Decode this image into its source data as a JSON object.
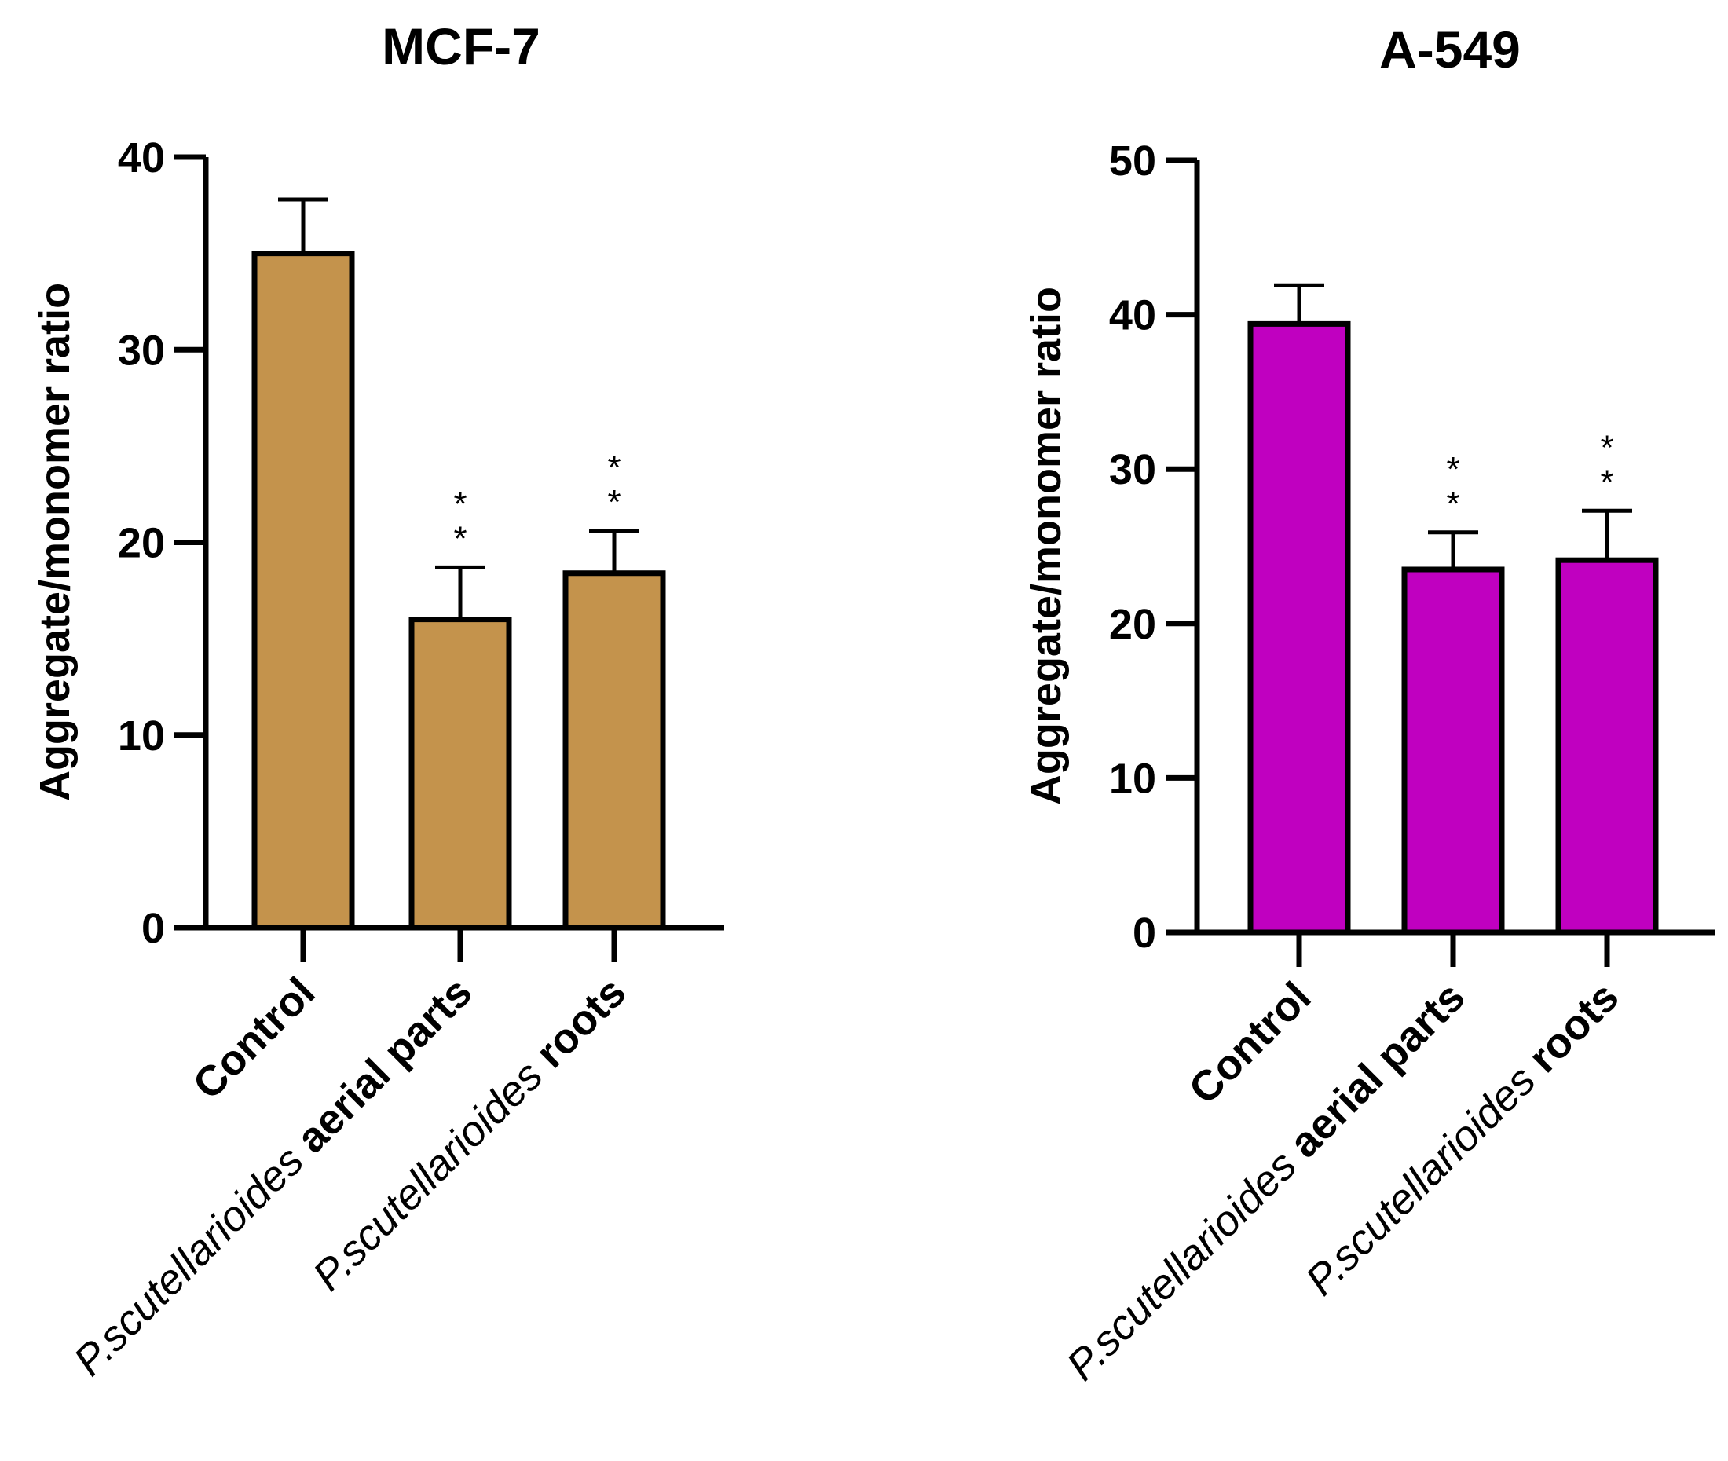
{
  "chart_data": [
    {
      "type": "bar",
      "title": "MCF-7",
      "ylabel": "Aggregate/monomer ratio",
      "xlabel": "",
      "ylim": [
        0,
        40
      ],
      "yticks": [
        0,
        10,
        20,
        30,
        40
      ],
      "ytick_labels": [
        "0",
        "10",
        "20",
        "30",
        "40"
      ],
      "grid": false,
      "bar_color": "#c4934c",
      "categories": [
        [
          {
            "text": "Control",
            "style": "bold"
          }
        ],
        [
          {
            "text": "P.scutellarioides ",
            "style": "italic"
          },
          {
            "text": "aerial parts",
            "style": "bold"
          }
        ],
        [
          {
            "text": "P.scutellarioides ",
            "style": "italic"
          },
          {
            "text": "roots",
            "style": "bold"
          }
        ]
      ],
      "values": [
        35.0,
        16.0,
        18.4
      ],
      "errors": [
        2.8,
        2.7,
        2.2
      ],
      "significance": [
        "",
        "* *",
        "* *"
      ]
    },
    {
      "type": "bar",
      "title": "A-549",
      "ylabel": "Aggregate/monomer ratio",
      "xlabel": "",
      "ylim": [
        0,
        50
      ],
      "yticks": [
        0,
        10,
        20,
        30,
        40,
        50
      ],
      "ytick_labels": [
        "0",
        "10",
        "20",
        "30",
        "40",
        "50"
      ],
      "grid": false,
      "bar_color": "#c000c0",
      "categories": [
        [
          {
            "text": "Control",
            "style": "bold"
          }
        ],
        [
          {
            "text": "P.scutellarioides ",
            "style": "italic"
          },
          {
            "text": "aerial parts",
            "style": "bold"
          }
        ],
        [
          {
            "text": "P.scutellarioides ",
            "style": "italic"
          },
          {
            "text": "roots",
            "style": "bold"
          }
        ]
      ],
      "values": [
        39.4,
        23.5,
        24.1
      ],
      "errors": [
        2.5,
        2.4,
        3.2
      ],
      "significance": [
        "",
        "* *",
        "* *"
      ]
    }
  ]
}
